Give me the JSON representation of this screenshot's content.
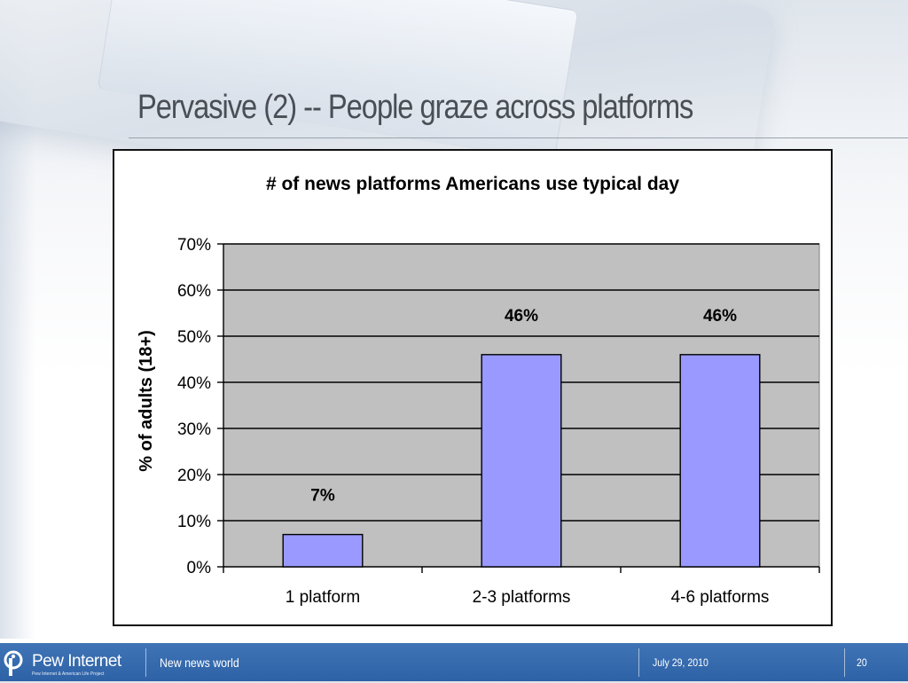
{
  "slide": {
    "title": "Pervasive (2) -- People graze across platforms"
  },
  "chart_data": {
    "type": "bar",
    "title": "# of news platforms Americans use typical day",
    "xlabel": "",
    "ylabel": "% of adults (18+)",
    "categories": [
      "1 platform",
      "2-3 platforms",
      "4-6 platforms"
    ],
    "values": [
      7,
      46,
      46
    ],
    "data_labels": [
      "7%",
      "46%",
      "46%"
    ],
    "ylim": [
      0,
      70
    ],
    "yticks": [
      0,
      10,
      20,
      30,
      40,
      50,
      60,
      70
    ],
    "ytick_labels": [
      "0%",
      "10%",
      "20%",
      "30%",
      "40%",
      "50%",
      "60%",
      "70%"
    ],
    "grid": true,
    "legend": "none",
    "colors": {
      "bar": "#9999ff",
      "plot_bg": "#c0c0c0",
      "gridline": "#000000"
    }
  },
  "footer": {
    "logo_name": "Pew Internet",
    "logo_subtitle": "Pew Internet & American Life Project",
    "logo_icon": "pew-logo-icon",
    "left_text": "New news world",
    "date": "July 29, 2010",
    "page_number": "20"
  }
}
